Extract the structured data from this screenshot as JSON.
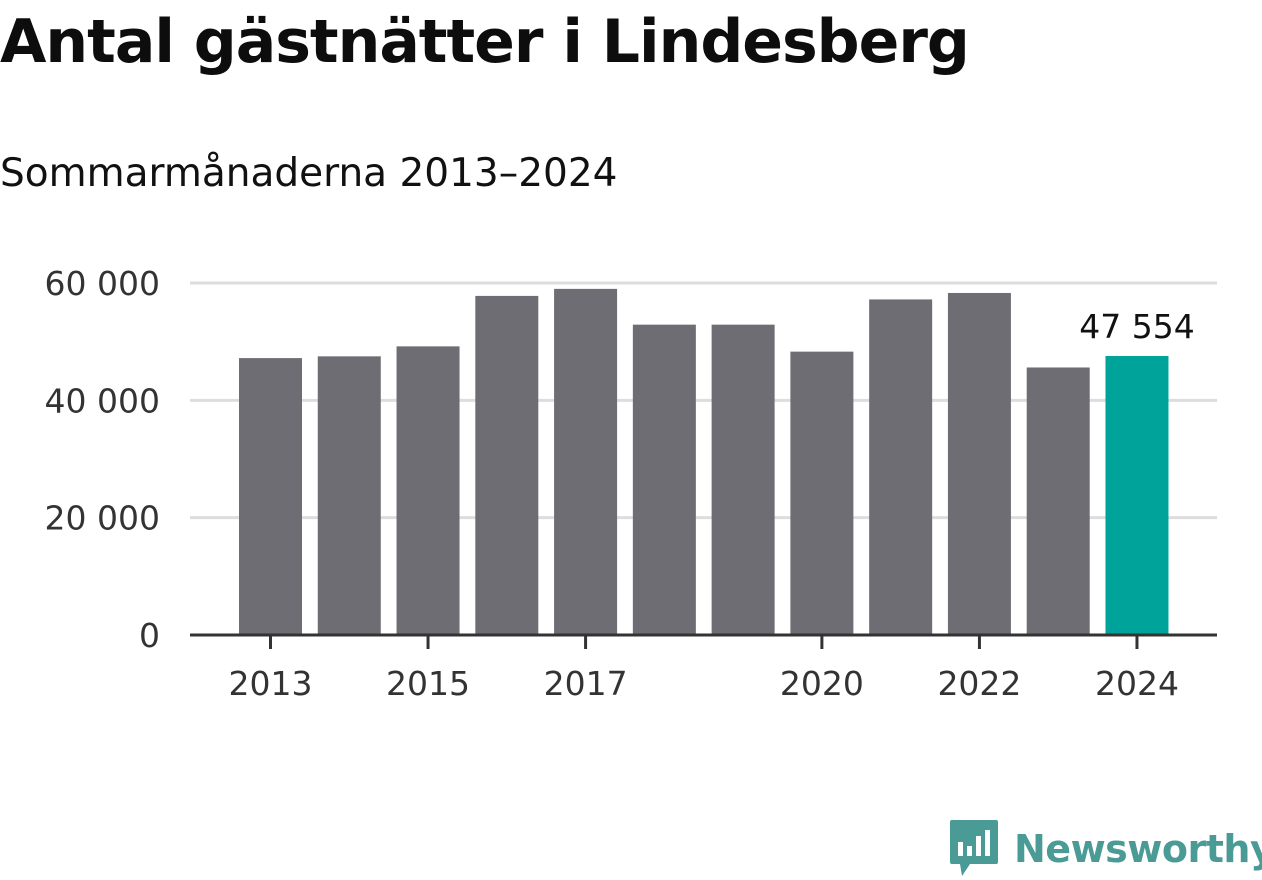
{
  "header": {
    "title": "Antal gästnätter i Lindesberg",
    "subtitle": "Sommarmånaderna 2013–2024"
  },
  "branding": {
    "name": "Newsworthy",
    "icon": "newsworthy-logo-icon",
    "color": "#4a9a96"
  },
  "colors": {
    "bar": "#6e6d73",
    "highlight": "#00a39a",
    "grid": "#dddddd",
    "axis": "#333333"
  },
  "chart_data": {
    "type": "bar",
    "title": "Antal gästnätter i Lindesberg",
    "subtitle": "Sommarmånaderna 2013–2024",
    "xlabel": "",
    "ylabel": "",
    "categories": [
      "2013",
      "2014",
      "2015",
      "2016",
      "2017",
      "2018",
      "2019",
      "2020",
      "2021",
      "2022",
      "2023",
      "2024"
    ],
    "x_tick_labels": [
      "2013",
      "2015",
      "2017",
      "2020",
      "2022",
      "2024"
    ],
    "values": [
      47200,
      47500,
      49200,
      57800,
      59000,
      52900,
      52900,
      48300,
      57200,
      58300,
      45600,
      47554
    ],
    "highlight_category": "2024",
    "annotations": [
      {
        "category": "2024",
        "text": "47 554"
      }
    ],
    "ylim": [
      0,
      60000
    ],
    "yticks": [
      0,
      20000,
      40000,
      60000
    ],
    "ytick_labels": [
      "0",
      "20 000",
      "40 000",
      "60 000"
    ],
    "grid": true,
    "legend": "none"
  }
}
